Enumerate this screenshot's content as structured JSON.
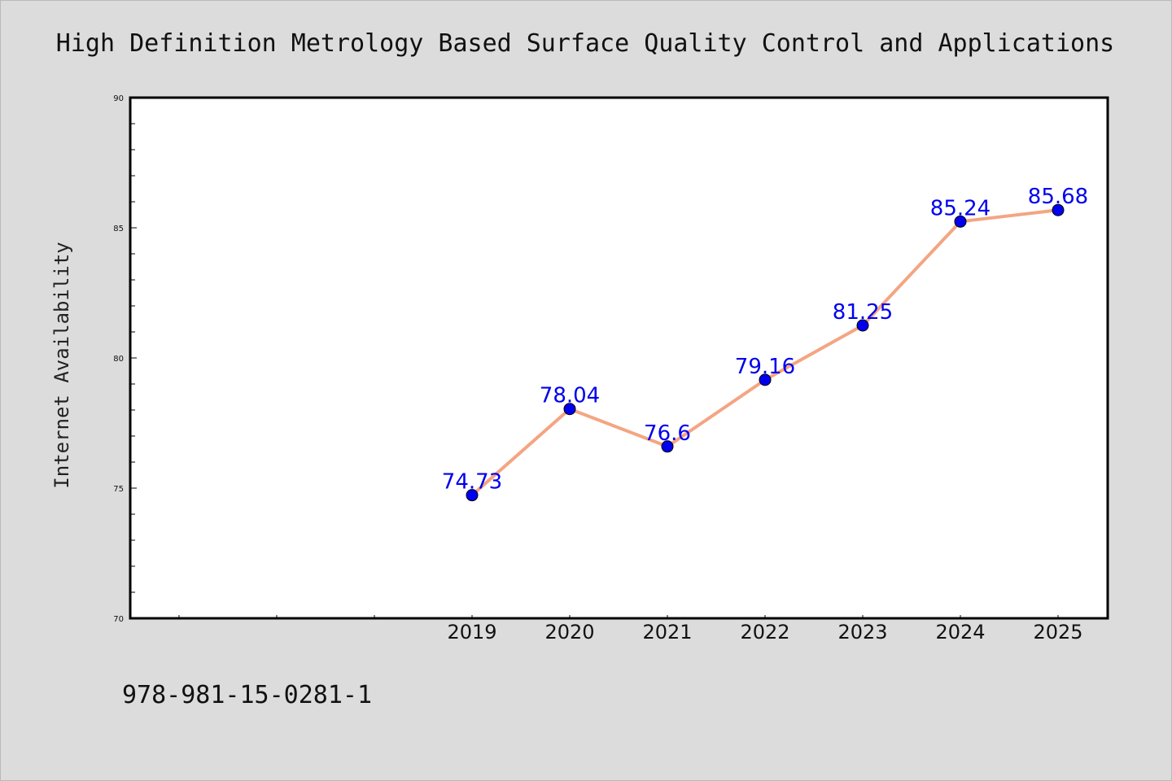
{
  "colors": {
    "background": "#dcdcdc",
    "plot_background": "#ffffff",
    "line": "#f4a582",
    "marker": "#0000ee",
    "label": "#0000ee"
  },
  "footer_text": "978-981-15-0281-1",
  "chart_data": {
    "type": "line",
    "title": "High Definition Metrology Based Surface Quality Control and Applications",
    "xlabel": "",
    "ylabel": "Internet Availability",
    "categories": [
      "2019",
      "2020",
      "2021",
      "2022",
      "2023",
      "2024",
      "2025"
    ],
    "series": [
      {
        "values": [
          74.73,
          78.04,
          76.6,
          79.16,
          81.25,
          85.24,
          85.68
        ],
        "labels": [
          "74.73",
          "78.04",
          "76.6",
          "79.16",
          "81.25",
          "85.24",
          "85.68"
        ]
      }
    ],
    "ylim": [
      70,
      90
    ],
    "yticks": [
      "70",
      "75",
      "80",
      "85",
      "90"
    ],
    "grid": false,
    "legend": "none"
  }
}
